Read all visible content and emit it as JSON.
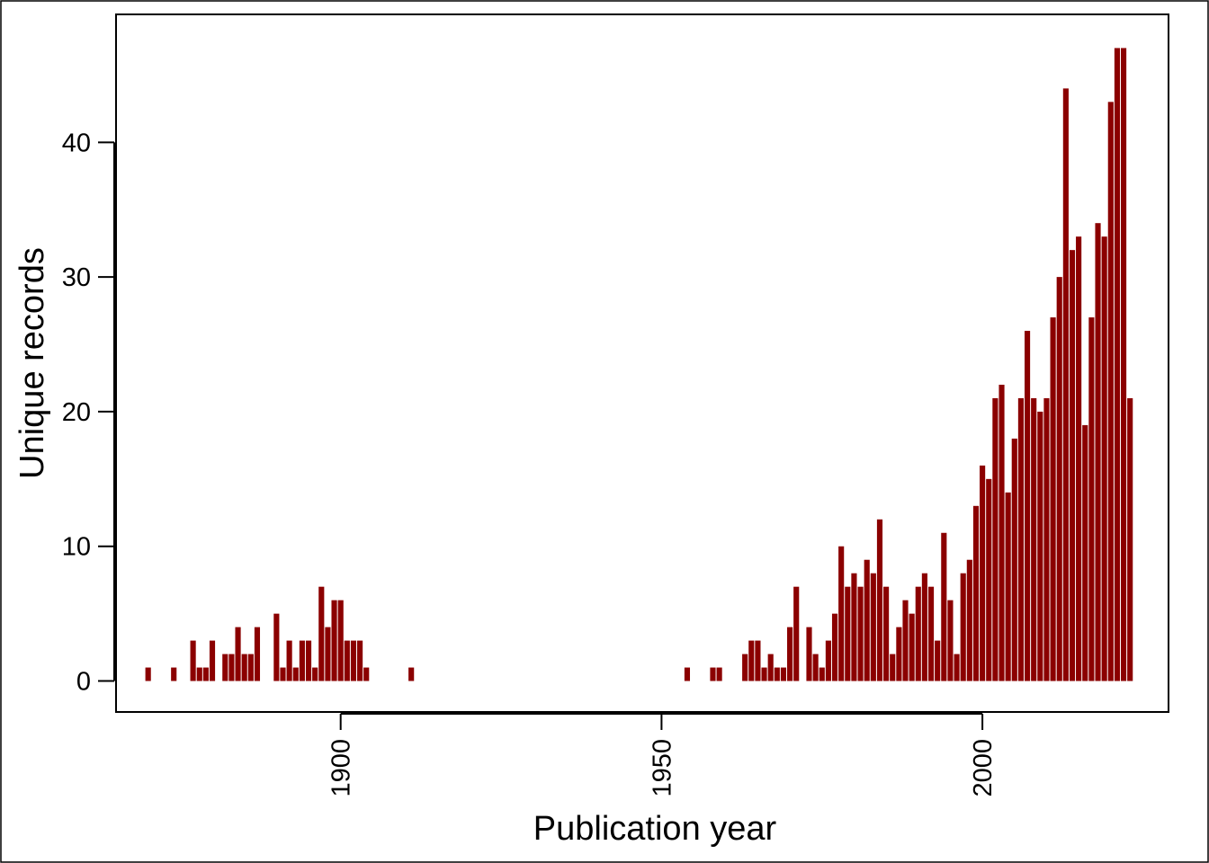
{
  "chart_data": {
    "type": "bar",
    "title": "",
    "xlabel": "Publication year",
    "ylabel": "Unique records",
    "xlim": [
      1865,
      2029
    ],
    "ylim": [
      -2.3,
      49.5
    ],
    "x_ticks": [
      1900,
      1950,
      2000
    ],
    "y_ticks": [
      0,
      10,
      20,
      30,
      40
    ],
    "grid": false,
    "legend": "none",
    "bar_color": "#8B0000",
    "series": [
      {
        "x": [
          1870,
          1874,
          1877,
          1878,
          1879,
          1880,
          1882,
          1883,
          1884,
          1885,
          1886,
          1887,
          1890,
          1891,
          1892,
          1893,
          1894,
          1895,
          1896,
          1897,
          1898,
          1899,
          1900,
          1901,
          1902,
          1903,
          1904,
          1911,
          1954,
          1958,
          1959,
          1963,
          1964,
          1965,
          1966,
          1967,
          1968,
          1969,
          1970,
          1971,
          1973,
          1974,
          1975,
          1976,
          1977,
          1978,
          1979,
          1980,
          1981,
          1982,
          1983,
          1984,
          1985,
          1986,
          1987,
          1988,
          1989,
          1990,
          1991,
          1992,
          1993,
          1994,
          1995,
          1996,
          1997,
          1998,
          1999,
          2000,
          2001,
          2002,
          2003,
          2004,
          2005,
          2006,
          2007,
          2008,
          2009,
          2010,
          2011,
          2012,
          2013,
          2014,
          2015,
          2016,
          2017,
          2018,
          2019,
          2020,
          2021,
          2022,
          2023
        ],
        "values": [
          1,
          1,
          3,
          1,
          1,
          3,
          2,
          2,
          4,
          2,
          2,
          4,
          5,
          1,
          3,
          1,
          3,
          3,
          1,
          7,
          4,
          6,
          6,
          3,
          3,
          3,
          1,
          1,
          1,
          1,
          1,
          2,
          3,
          3,
          1,
          2,
          1,
          1,
          4,
          7,
          4,
          2,
          1,
          3,
          5,
          10,
          7,
          8,
          7,
          9,
          8,
          12,
          7,
          2,
          4,
          6,
          5,
          7,
          8,
          7,
          3,
          11,
          6,
          2,
          8,
          9,
          13,
          16,
          15,
          21,
          22,
          14,
          18,
          21,
          26,
          21,
          20,
          21,
          27,
          30,
          44,
          32,
          33,
          19,
          27,
          34,
          33,
          43,
          47,
          47,
          21
        ]
      }
    ]
  }
}
